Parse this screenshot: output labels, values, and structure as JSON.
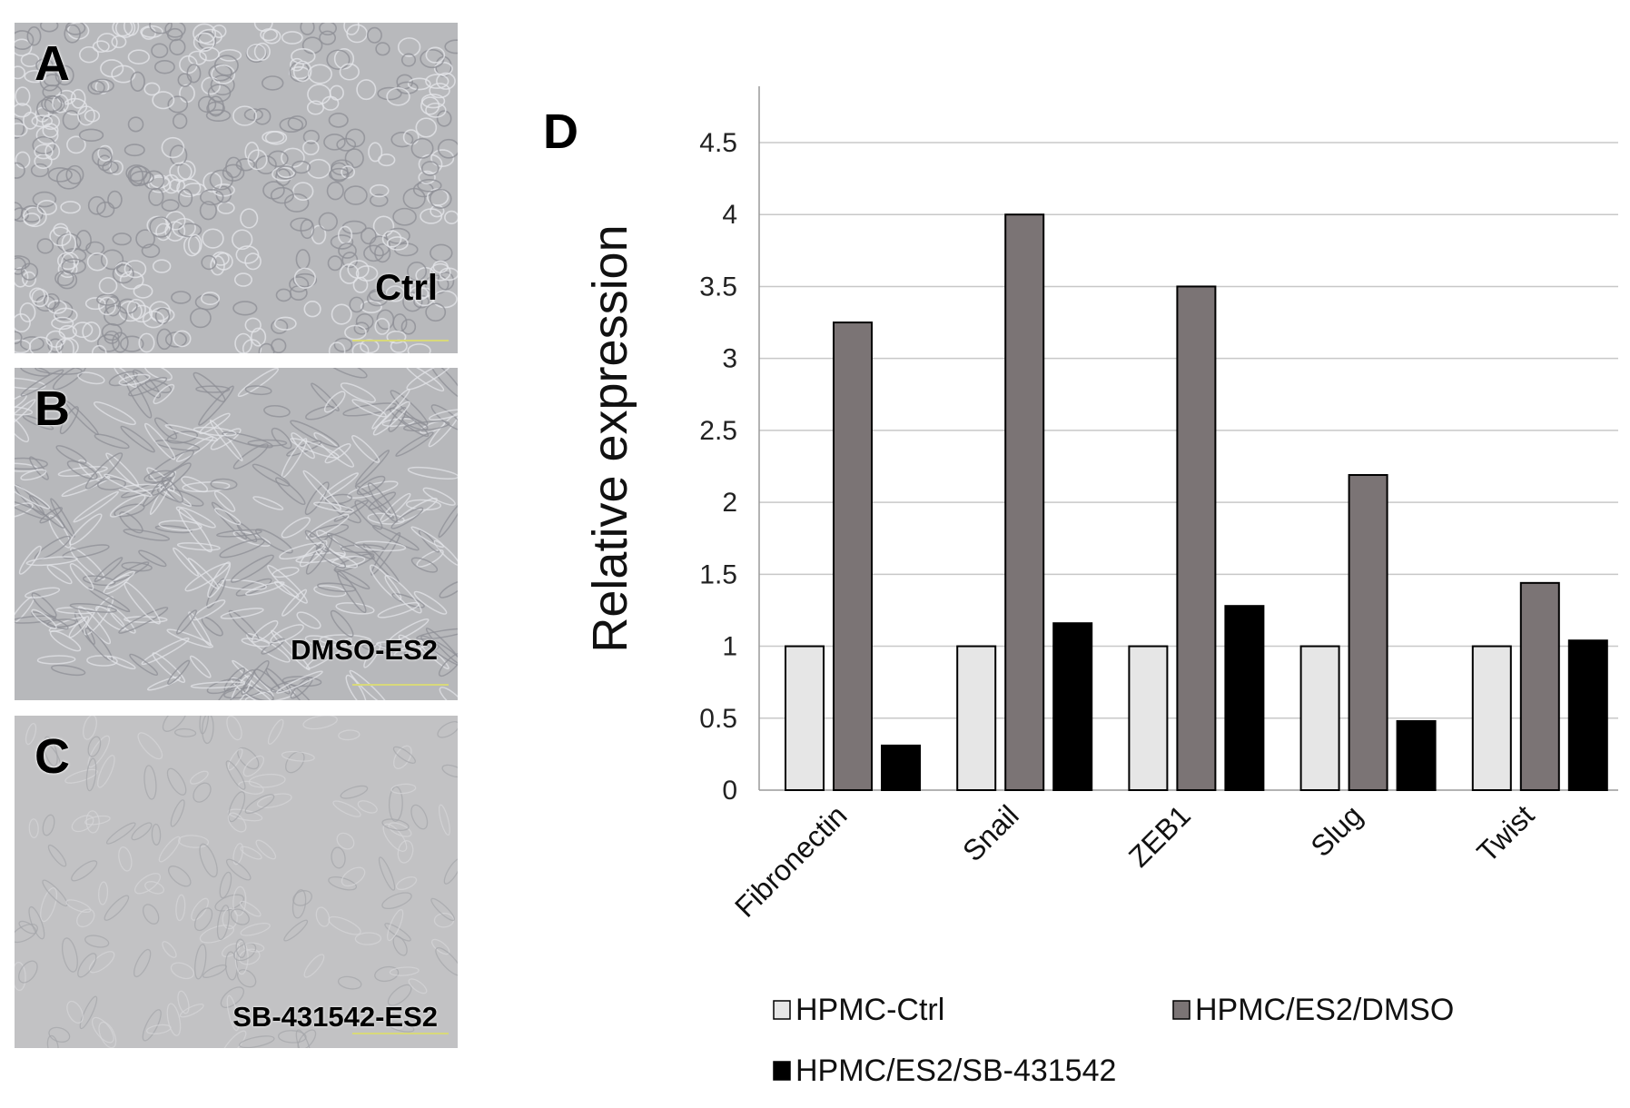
{
  "panels": [
    {
      "letter": "A",
      "caption": "Ctrl",
      "tone": "#b8b9bc"
    },
    {
      "letter": "B",
      "caption": "DMSO-ES2",
      "tone": "#b7b8bb"
    },
    {
      "letter": "C",
      "caption": "SB-431542-ES2",
      "tone": "#c2c2c4"
    }
  ],
  "chart_panel_letter": "D",
  "chart_data": {
    "type": "bar",
    "categories": [
      "Fibronectin",
      "Snail",
      "ZEB1",
      "Slug",
      "Twist"
    ],
    "series": [
      {
        "name": "HPMC-Ctrl",
        "color": "#e6e6e6",
        "values": [
          1,
          1,
          1,
          1,
          1
        ]
      },
      {
        "name": "HPMC/ES2/DMSO",
        "color": "#7b7475",
        "values": [
          3.25,
          4.0,
          3.5,
          2.19,
          1.44
        ]
      },
      {
        "name": "HPMC/ES2/SB-431542",
        "color": "#000000",
        "values": [
          0.31,
          1.16,
          1.28,
          0.48,
          1.04
        ]
      }
    ],
    "ylabel": "Relative expression",
    "xlabel": "",
    "ylim": [
      0,
      4.5
    ],
    "yticks": [
      "0",
      "0.5",
      "1",
      "1.5",
      "2",
      "2.5",
      "3",
      "3.5",
      "4",
      "4.5"
    ],
    "grid": true,
    "legend_position": "bottom"
  }
}
